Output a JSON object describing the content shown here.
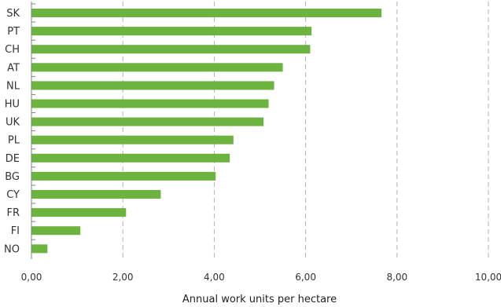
{
  "chart_data": {
    "type": "bar",
    "orientation": "horizontal",
    "categories": [
      "SK",
      "PT",
      "CH",
      "AT",
      "NL",
      "HU",
      "UK",
      "PL",
      "DE",
      "BG",
      "CY",
      "FR",
      "FI",
      "NO"
    ],
    "values": [
      7.66,
      6.13,
      6.1,
      5.5,
      5.31,
      5.19,
      5.08,
      4.42,
      4.34,
      4.03,
      2.83,
      2.07,
      1.07,
      0.35
    ],
    "xlabel": "Annual work units per hectare",
    "xlim": [
      0,
      10
    ],
    "x_ticks": [
      "0,00",
      "2,00",
      "4,00",
      "6,00",
      "8,00",
      "10,00"
    ],
    "x_tick_values": [
      0,
      2,
      4,
      6,
      8,
      10
    ],
    "grid": "vertical dashed",
    "bar_color": "#6db33f",
    "grid_color": "#b3b3b3",
    "axis_color": "#808080"
  }
}
